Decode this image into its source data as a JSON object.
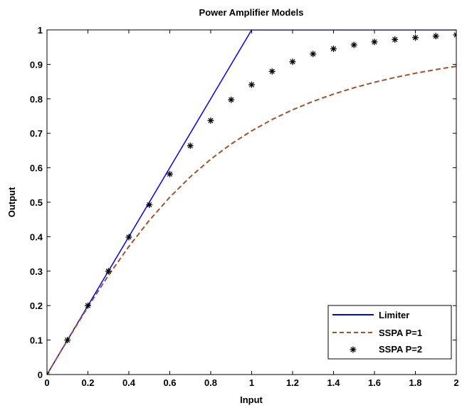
{
  "chart_data": {
    "type": "line",
    "title": "Power Amplifier Models",
    "xlabel": "Input",
    "ylabel": "Output",
    "xlim": [
      0,
      2
    ],
    "ylim": [
      0,
      1
    ],
    "x_ticks": [
      "0",
      "0.2",
      "0.4",
      "0.6",
      "0.8",
      "1",
      "1.2",
      "1.4",
      "1.6",
      "1.8",
      "2"
    ],
    "y_ticks": [
      "0",
      "0.1",
      "0.2",
      "0.3",
      "0.4",
      "0.5",
      "0.6",
      "0.7",
      "0.8",
      "0.9",
      "1"
    ],
    "grid": false,
    "legend_position": "bottom-right",
    "series": [
      {
        "name": "Limiter",
        "style": "solid-line",
        "color": "#0000ff",
        "x": [
          0,
          1,
          2
        ],
        "y": [
          0,
          1,
          1
        ]
      },
      {
        "name": "SSPA P=1",
        "style": "dashed-line",
        "color": "#a0522d",
        "x": [
          0,
          0.1,
          0.2,
          0.3,
          0.4,
          0.5,
          0.6,
          0.7,
          0.8,
          0.9,
          1.0,
          1.1,
          1.2,
          1.3,
          1.4,
          1.5,
          1.6,
          1.7,
          1.8,
          1.9,
          2.0
        ],
        "y": [
          0,
          0.0995,
          0.1961,
          0.2873,
          0.3714,
          0.4472,
          0.5145,
          0.5735,
          0.6247,
          0.669,
          0.7071,
          0.7399,
          0.7682,
          0.7926,
          0.8137,
          0.8321,
          0.848,
          0.862,
          0.8742,
          0.8849,
          0.8944
        ]
      },
      {
        "name": "SSPA P=2",
        "style": "asterisk-markers",
        "color": "#000000",
        "x": [
          0,
          0.1,
          0.2,
          0.3,
          0.4,
          0.5,
          0.6,
          0.7,
          0.8,
          0.9,
          1.0,
          1.1,
          1.2,
          1.3,
          1.4,
          1.5,
          1.6,
          1.7,
          1.8,
          1.9,
          2.0
        ],
        "y": [
          0,
          0.1,
          0.2,
          0.2999,
          0.3987,
          0.4926,
          0.5817,
          0.6638,
          0.7369,
          0.7972,
          0.8409,
          0.8797,
          0.9076,
          0.9302,
          0.9451,
          0.9564,
          0.9652,
          0.9721,
          0.9776,
          0.982,
          0.9856
        ]
      }
    ]
  }
}
